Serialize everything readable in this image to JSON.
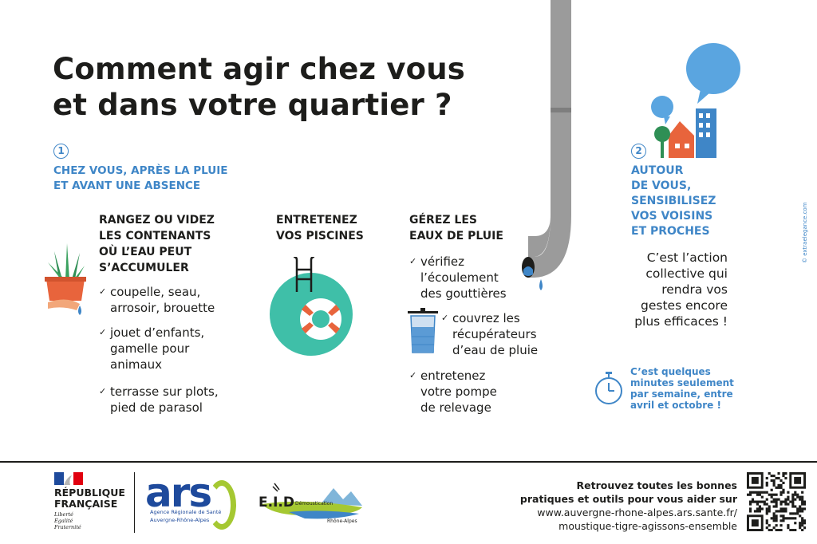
{
  "title": {
    "line1": "Comment agir chez vous",
    "line2": "et dans votre quartier ?"
  },
  "section1": {
    "number": "1",
    "heading_line1": "CHEZ VOUS, APRÈS LA PLUIE",
    "heading_line2": "ET AVANT UNE ABSENCE"
  },
  "columns": [
    {
      "heading": [
        "RANGEZ OU VIDEZ",
        "LES CONTENANTS",
        "OÙ L’EAU PEUT",
        "S’ACCUMULER"
      ],
      "items": [
        [
          "coupelle, seau,",
          "arrosoir, brouette"
        ],
        [
          "jouet d’enfants,",
          "gamelle pour",
          "animaux"
        ],
        [
          "terrasse sur plots,",
          "pied de parasol"
        ]
      ]
    },
    {
      "heading": [
        "ENTRETENEZ",
        "VOS PISCINES"
      ],
      "items": []
    },
    {
      "heading": [
        "GÉREZ LES",
        "EAUX DE PLUIE"
      ],
      "items": [
        [
          "vérifiez",
          "l’écoulement",
          "des gouttières"
        ],
        [
          "couvrez les",
          "récupérateurs",
          "d’eau de pluie"
        ],
        [
          "entretenez",
          "votre pompe",
          "de relevage"
        ]
      ]
    }
  ],
  "check_symbol": "✓",
  "section2": {
    "number": "2",
    "heading": [
      "AUTOUR",
      "DE VOUS,",
      "SENSIBILISEZ",
      "VOS VOISINS",
      "ET PROCHES"
    ],
    "body": [
      "C’est l’action",
      "collective qui",
      "rendra vos",
      "gestes encore",
      "plus efficaces !"
    ],
    "note": [
      "C’est quelques",
      "minutes seulement",
      "par semaine, entre",
      "avril et octobre !"
    ]
  },
  "side_credit": "© extraelegance.com",
  "footer": {
    "rf_line1": "RÉPUBLIQUE",
    "rf_line2": "FRANÇAISE",
    "rf_motto": [
      "Liberté",
      "Égalité",
      "Fraternité"
    ],
    "ars_logo": "ars",
    "ars_sub1": "Agence Régionale de Santé",
    "ars_sub2": "Auvergne-Rhône-Alpes",
    "eid_logo": "E.I.D",
    "eid_sub1": "Démoustication",
    "eid_sub2": "Rhône-Alpes",
    "text": [
      "Retrouvez toutes les bonnes",
      "pratiques et outils pour vous aider sur",
      "www.auvergne-rhone-alpes.ars.sante.fr/",
      "moustique-tigre-agissons-ensemble"
    ]
  },
  "colors": {
    "blue": "#3f86c7",
    "dark": "#1d1d1b",
    "teal": "#3fbfa8",
    "orange": "#e8643c",
    "pipe": "#9b9b9b",
    "ars_green": "#a5c832",
    "ars_blue": "#1e4a9c"
  }
}
